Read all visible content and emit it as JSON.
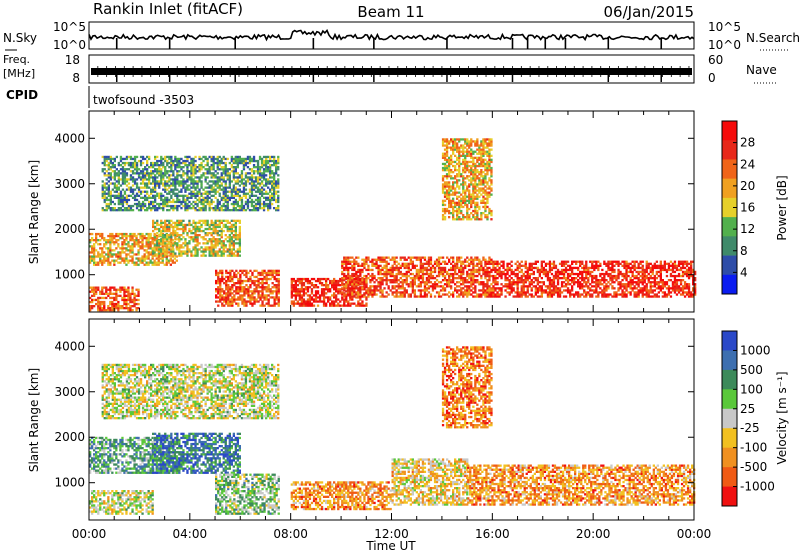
{
  "header": {
    "station": "Rankin Inlet (fitACF)",
    "beam": "Beam 11",
    "date": "06/Jan/2015"
  },
  "noise_panel": {
    "left_label": "N.Sky",
    "right_label": "N.Search",
    "left_ticks": [
      "10^5",
      "10^0"
    ],
    "right_ticks": [
      "10^5",
      "10^0"
    ]
  },
  "freq_panel": {
    "left_label_1": "Freq.",
    "left_label_2": "[MHz]",
    "right_label": "Nave",
    "left_ticks": [
      "18",
      "8"
    ],
    "right_ticks": [
      "60",
      "0"
    ]
  },
  "cpid": {
    "label": "CPID",
    "program": "twofsound  -3503"
  },
  "colors": {
    "power_scale": [
      "#0a1cf0",
      "#2e4da8",
      "#3f8a6a",
      "#52b04d",
      "#e6d02a",
      "#f0a020",
      "#f06418",
      "#e8281a",
      "#f50a0a"
    ],
    "velocity_scale": [
      "#2a48c8",
      "#3d6fb0",
      "#3c8a5a",
      "#5ac83a",
      "#c8c8c8",
      "#f2c020",
      "#f09020",
      "#f05a14",
      "#f01010"
    ]
  },
  "chart_data": [
    {
      "type": "heatmap",
      "name": "power-panel",
      "xlabel": "",
      "ylabel": "Slant Range [km]",
      "x_ticks": [
        "00:00",
        "04:00",
        "08:00",
        "12:00",
        "16:00",
        "20:00",
        "00:00"
      ],
      "x_range_hours": [
        0,
        24
      ],
      "ylim": [
        180,
        4600
      ],
      "y_ticks": [
        1000,
        2000,
        3000,
        4000
      ],
      "colorbar": {
        "label": "Power [dB]",
        "ticks": [
          "4",
          "8",
          "12",
          "16",
          "20",
          "24",
          "28"
        ],
        "range": [
          0,
          32
        ]
      },
      "regions": [
        {
          "t0": 0.0,
          "t1": 3.5,
          "r0": 1200,
          "r1": 1900,
          "level": 0.6
        },
        {
          "t0": 2.5,
          "t1": 6.0,
          "r0": 1400,
          "r1": 2200,
          "level": 0.5
        },
        {
          "t0": 0.0,
          "t1": 2.0,
          "r0": 200,
          "r1": 700,
          "level": 0.8
        },
        {
          "t0": 5.0,
          "t1": 7.5,
          "r0": 300,
          "r1": 1100,
          "level": 0.8
        },
        {
          "t0": 8.0,
          "t1": 11.0,
          "r0": 300,
          "r1": 900,
          "level": 0.9
        },
        {
          "t0": 10.0,
          "t1": 16.0,
          "r0": 500,
          "r1": 1400,
          "level": 0.8
        },
        {
          "t0": 16.0,
          "t1": 24.0,
          "r0": 500,
          "r1": 1300,
          "level": 0.9
        },
        {
          "t0": 0.5,
          "t1": 7.5,
          "r0": 2400,
          "r1": 3600,
          "level": 0.3
        },
        {
          "t0": 14.0,
          "t1": 16.0,
          "r0": 2200,
          "r1": 4000,
          "level": 0.6
        }
      ]
    },
    {
      "type": "heatmap",
      "name": "velocity-panel",
      "xlabel": "Time UT",
      "ylabel": "Slant Range [km]",
      "x_ticks": [
        "00:00",
        "04:00",
        "08:00",
        "12:00",
        "16:00",
        "20:00",
        "00:00"
      ],
      "x_range_hours": [
        0,
        24
      ],
      "ylim": [
        180,
        4600
      ],
      "y_ticks": [
        1000,
        2000,
        3000,
        4000
      ],
      "colorbar": {
        "label": "Velocity  [m s⁻¹]",
        "ticks": [
          "1000",
          "500",
          "100",
          "25",
          "-25",
          "-100",
          "-500",
          "-1000"
        ],
        "range": [
          -1200,
          1200
        ]
      },
      "regions": [
        {
          "t0": 0.0,
          "t1": 3.5,
          "r0": 1200,
          "r1": 2000,
          "level": 0.3
        },
        {
          "t0": 2.5,
          "t1": 6.0,
          "r0": 1200,
          "r1": 2100,
          "level": 0.15
        },
        {
          "t0": 0.0,
          "t1": 2.5,
          "r0": 300,
          "r1": 800,
          "level": 0.5
        },
        {
          "t0": 5.0,
          "t1": 7.5,
          "r0": 300,
          "r1": 1200,
          "level": 0.4
        },
        {
          "t0": 8.0,
          "t1": 12.0,
          "r0": 400,
          "r1": 1000,
          "level": 0.75
        },
        {
          "t0": 12.0,
          "t1": 15.0,
          "r0": 500,
          "r1": 1500,
          "level": 0.6
        },
        {
          "t0": 15.0,
          "t1": 24.0,
          "r0": 500,
          "r1": 1400,
          "level": 0.75
        },
        {
          "t0": 0.5,
          "t1": 7.5,
          "r0": 2400,
          "r1": 3600,
          "level": 0.5
        },
        {
          "t0": 14.0,
          "t1": 16.0,
          "r0": 2200,
          "r1": 4000,
          "level": 0.8
        }
      ]
    }
  ]
}
